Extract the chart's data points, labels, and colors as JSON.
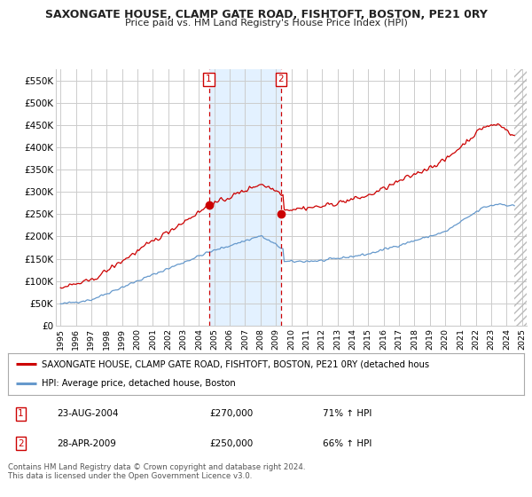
{
  "title": "SAXONGATE HOUSE, CLAMP GATE ROAD, FISHTOFT, BOSTON, PE21 0RY",
  "subtitle": "Price paid vs. HM Land Registry's House Price Index (HPI)",
  "ylim": [
    0,
    575000
  ],
  "yticks": [
    0,
    50000,
    100000,
    150000,
    200000,
    250000,
    300000,
    350000,
    400000,
    450000,
    500000,
    550000
  ],
  "ytick_labels": [
    "£0",
    "£50K",
    "£100K",
    "£150K",
    "£200K",
    "£250K",
    "£300K",
    "£350K",
    "£400K",
    "£450K",
    "£500K",
    "£550K"
  ],
  "xlim_left": 1994.7,
  "xlim_right": 2025.3,
  "sale1_year": 2004.646,
  "sale1_price": 270000,
  "sale2_year": 2009.326,
  "sale2_price": 250000,
  "data_end_year": 2024.5,
  "red_line_color": "#cc0000",
  "blue_line_color": "#6699cc",
  "shading_color": "#ddeeff",
  "vline_color": "#cc0000",
  "hatch_color": "#bbbbbb",
  "legend_label_red": "SAXONGATE HOUSE, CLAMP GATE ROAD, FISHTOFT, BOSTON, PE21 0RY (detached hous",
  "legend_label_blue": "HPI: Average price, detached house, Boston",
  "table_row1": [
    "1",
    "23-AUG-2004",
    "£270,000",
    "71% ↑ HPI"
  ],
  "table_row2": [
    "2",
    "28-APR-2009",
    "£250,000",
    "66% ↑ HPI"
  ],
  "footer": "Contains HM Land Registry data © Crown copyright and database right 2024.\nThis data is licensed under the Open Government Licence v3.0.",
  "background_color": "#ffffff",
  "grid_color": "#cccccc"
}
